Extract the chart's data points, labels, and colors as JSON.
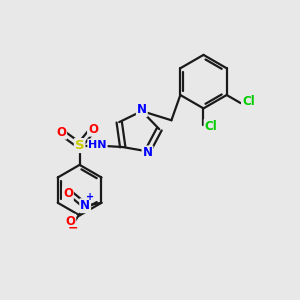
{
  "bg_color": "#e8e8e8",
  "bond_color": "#1a1a1a",
  "bond_width": 1.6,
  "atom_colors": {
    "N": "#0000ff",
    "O": "#ff0000",
    "S": "#cccc00",
    "Cl": "#00cc00",
    "H": "#888888",
    "C": "#1a1a1a"
  },
  "font_size": 8.5,
  "figsize": [
    3.0,
    3.0
  ],
  "dpi": 100
}
